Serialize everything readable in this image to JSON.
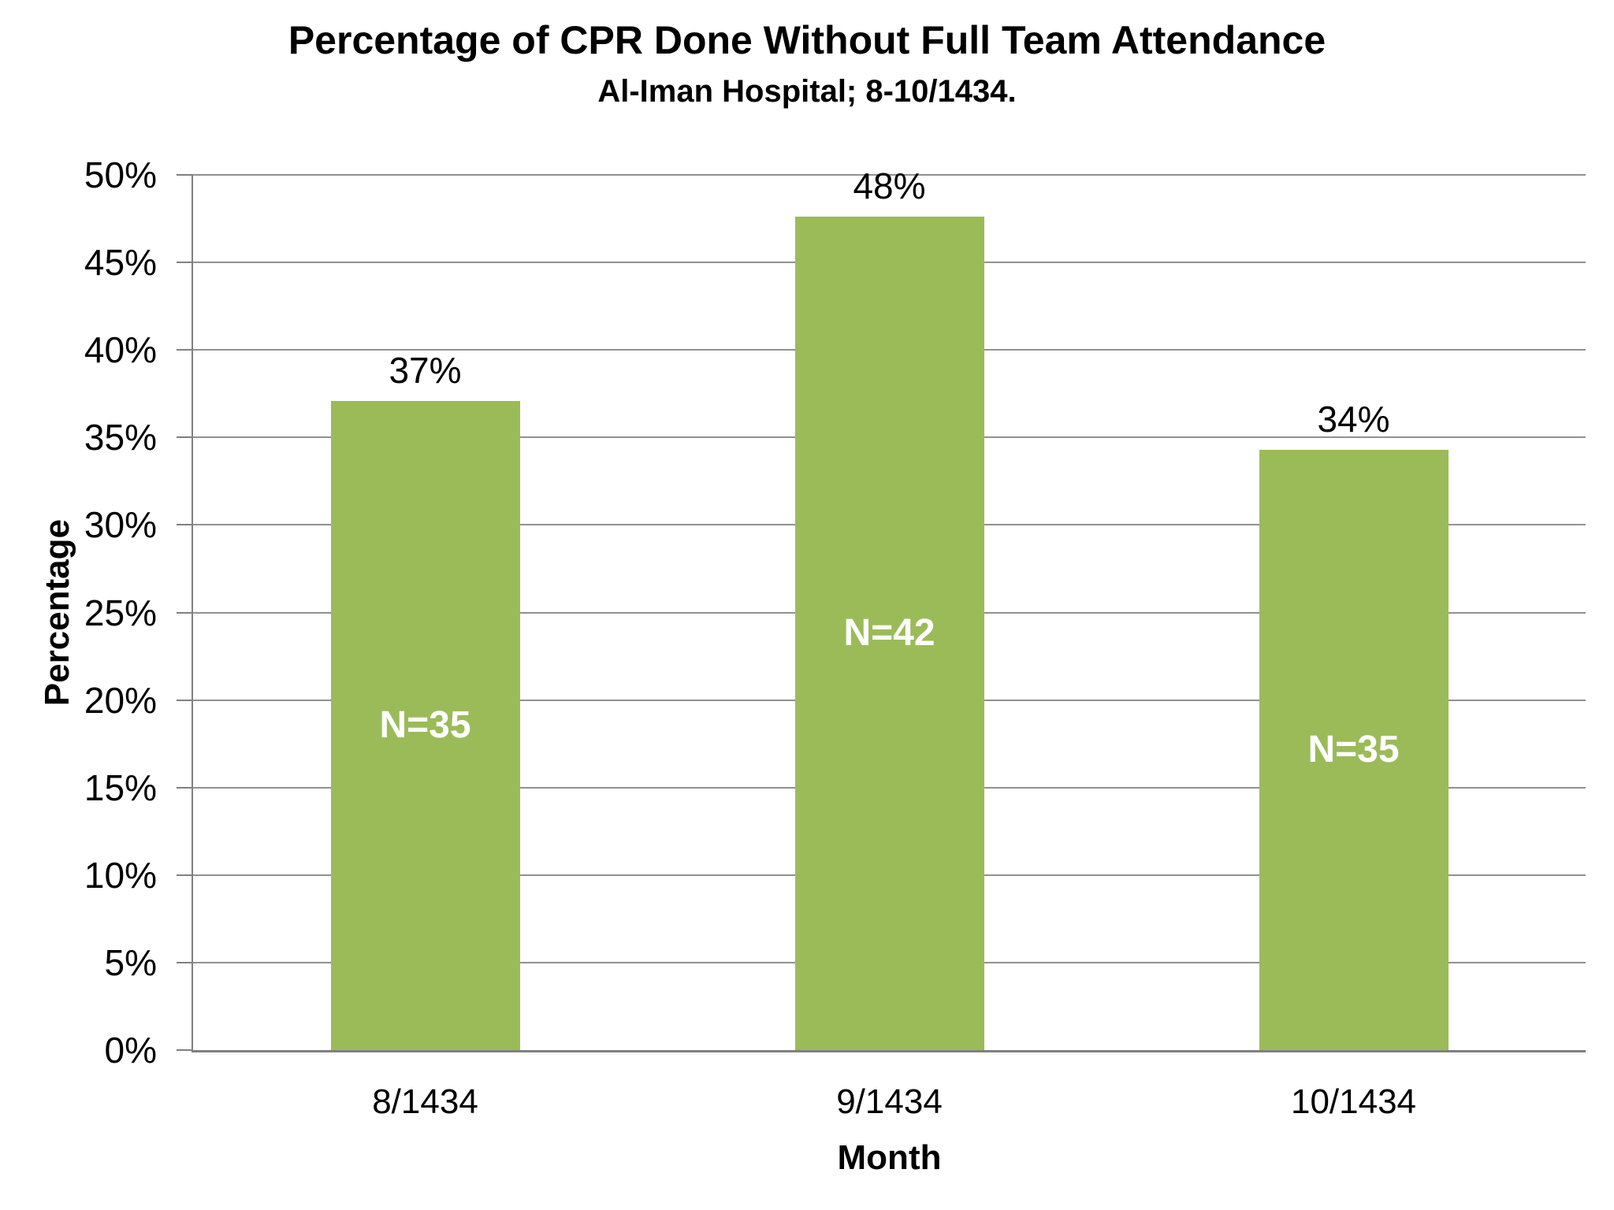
{
  "chart_data": {
    "type": "bar",
    "title": "Percentage of CPR Done Without Full Team Attendance",
    "subtitle": "Al-Iman Hospital; 8-10/1434.",
    "xlabel": "Month",
    "ylabel": "Percentage",
    "categories": [
      "8/1434",
      "9/1434",
      "10/1434"
    ],
    "values": [
      37.1,
      47.6,
      34.3
    ],
    "value_labels": [
      "37%",
      "48%",
      "34%"
    ],
    "n_labels": [
      "N=35",
      "N=42",
      "N=35"
    ],
    "ylim": [
      0,
      50
    ],
    "ytick_step": 5,
    "ytick_labels": [
      "0%",
      "5%",
      "10%",
      "15%",
      "20%",
      "25%",
      "30%",
      "35%",
      "40%",
      "45%",
      "50%"
    ],
    "grid": true,
    "legend": "none",
    "colors": {
      "bar": "#9BBB59",
      "n_label": "#FFFFFF",
      "value_label": "#000000",
      "grid": "#919191",
      "axis": "#808080",
      "text": "#000000",
      "background": "#FFFFFF"
    }
  }
}
